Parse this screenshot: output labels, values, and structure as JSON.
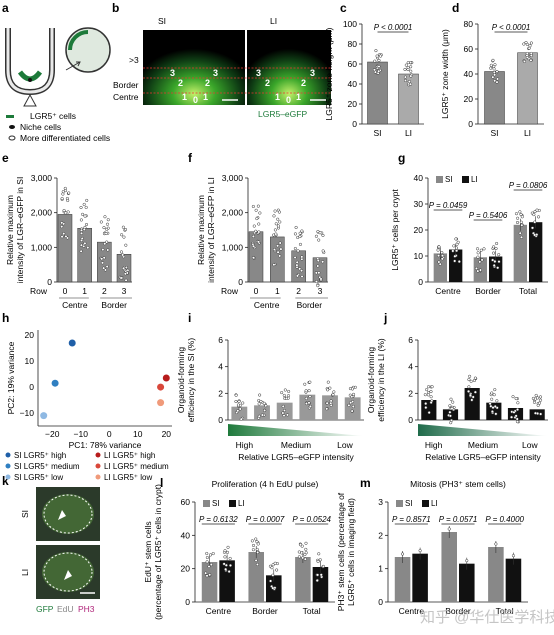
{
  "panel_letters": {
    "a": "a",
    "b": "b",
    "c": "c",
    "d": "d",
    "e": "e",
    "f": "f",
    "g": "g",
    "h": "h",
    "i": "i",
    "j": "j",
    "k": "k",
    "l": "l",
    "m": "m"
  },
  "panel_a": {
    "legend": [
      "LGR5⁺ cells",
      "Niche cells",
      "More differentiated cells"
    ]
  },
  "panel_b": {
    "si": "SI",
    "li": "LI",
    "row_gt3": ">3",
    "row_border": "Border",
    "row_centre": "Centre",
    "micro_label": "LGR5–eGFP",
    "si_nums": [
      "3",
      "2",
      "2",
      "3",
      "1",
      "0",
      "1"
    ],
    "li_nums": [
      "3",
      "2",
      "2",
      "3",
      "1",
      "0",
      "1"
    ]
  },
  "colors": {
    "grey": "#888888",
    "black": "#111111",
    "green_dark": "#1d7a3a",
    "teal": "#2aa06a",
    "si_high": "#1f5fa8",
    "si_med": "#2f7fc1",
    "si_low": "#8fb9e3",
    "li_high": "#b71c1c",
    "li_med": "#d9473a",
    "li_low": "#f09a7a",
    "watermark": "#bbbbbb"
  },
  "chart_data": [
    {
      "panel": "c",
      "type": "bar",
      "categories": [
        "SI",
        "LI"
      ],
      "values": [
        62,
        50
      ],
      "ylabel": "LGR5⁺ zone height (μm)",
      "ylim": [
        0,
        100
      ],
      "yticks": [
        "0",
        "20",
        "40",
        "60",
        "80",
        "100"
      ],
      "annotation": "P < 0.0001"
    },
    {
      "panel": "d",
      "type": "bar",
      "categories": [
        "SI",
        "LI"
      ],
      "values": [
        42,
        57
      ],
      "ylabel": "LGR5⁺ zone width (μm)",
      "ylim": [
        0,
        80
      ],
      "yticks": [
        "0",
        "20",
        "40",
        "60",
        "80"
      ],
      "annotation": "P < 0.0001"
    },
    {
      "panel": "e",
      "type": "bar",
      "categories": [
        "0",
        "1",
        "2",
        "3"
      ],
      "values": [
        1950,
        1550,
        1150,
        800
      ],
      "ylabel": "Relative maximum intensity of LGR–eGFP in SI",
      "ylim": [
        0,
        3000
      ],
      "yticks": [
        "0",
        "1,000",
        "2,000",
        "3,000"
      ],
      "xrow": "Row",
      "groups": [
        "Centre",
        "Border"
      ]
    },
    {
      "panel": "f",
      "type": "bar",
      "categories": [
        "0",
        "1",
        "2",
        "3"
      ],
      "values": [
        1450,
        1300,
        900,
        700
      ],
      "ylabel": "Relative maximum intensity of LGR–eGFP in LI",
      "ylim": [
        0,
        3000
      ],
      "yticks": [
        "0",
        "1,000",
        "2,000",
        "3,000"
      ],
      "xrow": "Row",
      "groups": [
        "Centre",
        "Border"
      ]
    },
    {
      "panel": "g",
      "type": "bar",
      "categories": [
        "Centre",
        "Border",
        "Total"
      ],
      "series": [
        {
          "name": "SI",
          "values": [
            11,
            9.5,
            22
          ]
        },
        {
          "name": "LI",
          "values": [
            12.5,
            9.8,
            23
          ]
        }
      ],
      "ylabel": "LGR5⁺ cells per crypt",
      "ylim": [
        0,
        40
      ],
      "yticks": [
        "0",
        "10",
        "20",
        "30",
        "40"
      ],
      "annotations": [
        "P = 0.0459",
        "P = 0.5406",
        "P = 0.0806"
      ]
    },
    {
      "panel": "h",
      "type": "scatter",
      "xlabel": "PC1: 78% variance",
      "ylabel": "PC2: 19% variance",
      "xlim": [
        -25,
        22
      ],
      "ylim": [
        -15,
        22
      ],
      "xticks": [
        "−20",
        "−10",
        "0",
        "10",
        "20"
      ],
      "yticks": [
        "−10",
        "0",
        "10",
        "20"
      ],
      "series": [
        {
          "name": "SI LGR5⁺ high",
          "x": [
            -13
          ],
          "y": [
            17
          ]
        },
        {
          "name": "SI LGR5⁺ medium",
          "x": [
            -19
          ],
          "y": [
            1.5
          ]
        },
        {
          "name": "SI LGR5⁺ low",
          "x": [
            -23
          ],
          "y": [
            -11
          ]
        },
        {
          "name": "LI LGR5⁺ high",
          "x": [
            20
          ],
          "y": [
            3.5
          ]
        },
        {
          "name": "LI LGR5⁺ medium",
          "x": [
            18
          ],
          "y": [
            0
          ]
        },
        {
          "name": "LI LGR5⁺ low",
          "x": [
            18
          ],
          "y": [
            -6
          ]
        }
      ]
    },
    {
      "panel": "i",
      "type": "bar",
      "values": [
        1.0,
        1.1,
        1.3,
        1.9,
        1.85,
        1.7
      ],
      "ylabel": "Organoid-forming efficiency in the SI (%)",
      "ylim": [
        0,
        6
      ],
      "yticks": [
        "0",
        "2",
        "4",
        "6"
      ],
      "xlabel": "Relative LGR5–eGFP intensity",
      "gradient_labels": [
        "High",
        "Medium",
        "Low"
      ]
    },
    {
      "panel": "j",
      "type": "bar",
      "values": [
        1.5,
        0.8,
        2.4,
        1.3,
        0.9,
        0.8
      ],
      "ylabel": "Organoid-forming efficiency in the LI (%)",
      "ylim": [
        0,
        6
      ],
      "yticks": [
        "0",
        "2",
        "4",
        "6"
      ],
      "xlabel": "Relative LGR5–eGFP intensity",
      "gradient_labels": [
        "High",
        "Medium",
        "Low"
      ]
    },
    {
      "panel": "l",
      "type": "bar",
      "title": "Proliferation (4 h EdU pulse)",
      "categories": [
        "Centre",
        "Border",
        "Total"
      ],
      "series": [
        {
          "name": "SI",
          "values": [
            24,
            30,
            27
          ]
        },
        {
          "name": "LI",
          "values": [
            25,
            16,
            21
          ]
        }
      ],
      "ylabel": "EdU⁺ stem cells (percentage of LGR5⁺ cells in crypt)",
      "ylim": [
        0,
        60
      ],
      "yticks": [
        "0",
        "20",
        "40",
        "60"
      ],
      "annotations": [
        "P = 0.6132",
        "P = 0.0007",
        "P = 0.0524"
      ]
    },
    {
      "panel": "m",
      "type": "bar",
      "title": "Mitosis (PH3⁺ stem cells)",
      "categories": [
        "Centre",
        "Border",
        "Total"
      ],
      "series": [
        {
          "name": "SI",
          "values": [
            1.35,
            2.1,
            1.65
          ]
        },
        {
          "name": "LI",
          "values": [
            1.45,
            1.15,
            1.3
          ]
        }
      ],
      "ylabel": "PH3⁺ stem cells (percentage of LGR5⁺ cells in imaging field)",
      "ylim": [
        0,
        3
      ],
      "yticks": [
        "0",
        "1",
        "2",
        "3"
      ],
      "annotations": [
        "P = 0.8571",
        "P = 0.0571",
        "P = 0.4000"
      ]
    }
  ],
  "panel_h_legend": [
    "SI LGR5⁺ high",
    "SI LGR5⁺ medium",
    "SI LGR5⁺ low",
    "LI LGR5⁺ high",
    "LI LGR5⁺ medium",
    "LI LGR5⁺ low"
  ],
  "panel_k": {
    "si": "SI",
    "li": "LI",
    "stain": [
      "GFP",
      "EdU",
      "PH3"
    ]
  },
  "watermark": "知乎 @华仕医学科技"
}
